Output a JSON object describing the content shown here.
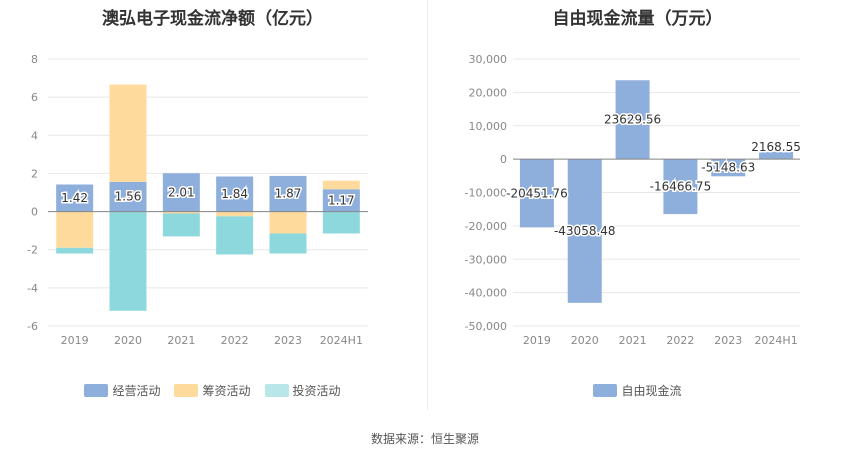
{
  "source": "数据来源：恒生聚源",
  "chart_data": [
    {
      "type": "bar",
      "stacked": true,
      "title": "澳弘电子现金流净额（亿元）",
      "categories": [
        "2019",
        "2020",
        "2021",
        "2022",
        "2023",
        "2024H1"
      ],
      "ylim": [
        -6,
        8
      ],
      "yticks": [
        "8",
        "6",
        "4",
        "2",
        "0",
        "-2",
        "-4",
        "-6"
      ],
      "grid": true,
      "legend_position": "bottom",
      "series": [
        {
          "name": "经营活动",
          "color": "#8eaedc",
          "values": [
            1.42,
            1.56,
            2.01,
            1.84,
            1.87,
            1.17
          ],
          "labels": [
            "1.42",
            "1.56",
            "2.01",
            "1.84",
            "1.87",
            "1.17"
          ]
        },
        {
          "name": "筹资活动",
          "color": "#fedb9c",
          "values": [
            -1.9,
            5.1,
            -0.1,
            -0.25,
            -1.15,
            0.45
          ]
        },
        {
          "name": "投资活动",
          "color": "#8cd8dc",
          "values": [
            -0.3,
            -5.2,
            -1.2,
            -2.0,
            -1.05,
            -1.15
          ]
        }
      ]
    },
    {
      "type": "bar",
      "title": "自由现金流量（万元）",
      "categories": [
        "2019",
        "2020",
        "2021",
        "2022",
        "2023",
        "2024H1"
      ],
      "ylim": [
        -50000,
        30000
      ],
      "yticks": [
        "30,000",
        "20,000",
        "10,000",
        "0",
        "-10,000",
        "-20,000",
        "-30,000",
        "-40,000",
        "-50,000"
      ],
      "grid": true,
      "legend_position": "bottom",
      "series": [
        {
          "name": "自由现金流",
          "color": "#8eaedc",
          "values": [
            -20451.76,
            -43058.48,
            23629.56,
            -16466.75,
            -5148.63,
            2168.55
          ],
          "labels": [
            "-20451.76",
            "-43058.48",
            "23629.56",
            "-16466.75",
            "-5148.63",
            "2168.55"
          ]
        }
      ]
    }
  ]
}
